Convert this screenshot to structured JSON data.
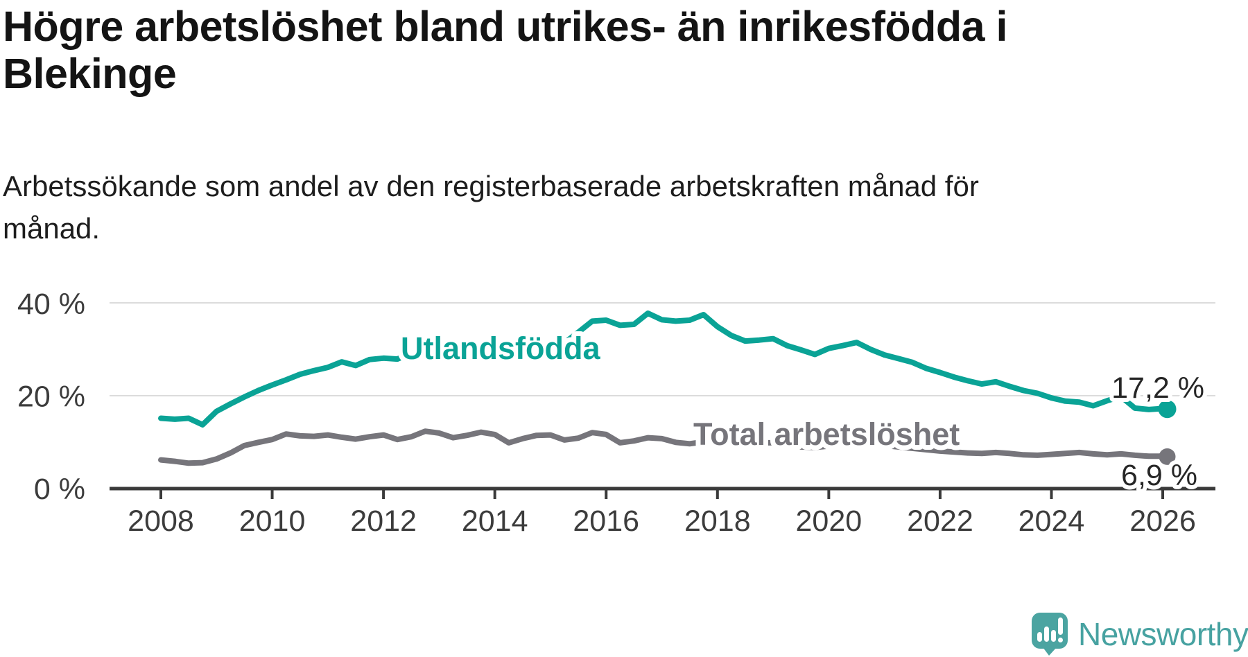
{
  "header": {
    "title_lines": [
      "Högre arbetslöshet bland utrikes- än inrikesfödda i",
      "Blekinge"
    ],
    "subtitle_lines": [
      "Arbetssökande som andel av den registerbaserade arbetskraften månad för",
      "månad."
    ]
  },
  "colors": {
    "accent_teal": "#0aa396",
    "series_gray": "#76757b",
    "gridline": "#dcdcdc",
    "axis": "#3a3a3a",
    "title_text": "#141414",
    "value_label_text": "#262626",
    "logo_teal": "#47a2a1"
  },
  "footer": {
    "logo_text": "Newsworthy"
  },
  "chart_data": {
    "type": "line",
    "title": "Högre arbetslöshet bland utrikes- än inrikesfödda i Blekinge",
    "subtitle": "Arbetssökande som andel av den registerbaserade arbetskraften månad för månad.",
    "x_unit": "year",
    "y_unit": "%",
    "xlim": [
      2007.1,
      2026.95
    ],
    "ylim": [
      0,
      42
    ],
    "grid": "horizontal",
    "x_ticks": [
      {
        "year": 2008,
        "label": "2008"
      },
      {
        "year": 2010,
        "label": "2010"
      },
      {
        "year": 2012,
        "label": "2012"
      },
      {
        "year": 2014,
        "label": "2014"
      },
      {
        "year": 2016,
        "label": "2016"
      },
      {
        "year": 2018,
        "label": "2018"
      },
      {
        "year": 2020,
        "label": "2020"
      },
      {
        "year": 2022,
        "label": "2022"
      },
      {
        "year": 2024,
        "label": "2024"
      },
      {
        "year": 2026,
        "label": "2026"
      }
    ],
    "y_ticks": [
      {
        "value": 40,
        "label": "40 %"
      },
      {
        "value": 20,
        "label": "20 %"
      },
      {
        "value": 0,
        "label": "0 %"
      }
    ],
    "x": [
      2008,
      2008.25,
      2008.5,
      2008.75,
      2009,
      2009.25,
      2009.5,
      2009.75,
      2010,
      2010.25,
      2010.5,
      2010.75,
      2011,
      2011.25,
      2011.5,
      2011.75,
      2012,
      2012.25,
      2012.5,
      2012.75,
      2013,
      2013.25,
      2013.5,
      2013.75,
      2014,
      2014.25,
      2014.5,
      2014.75,
      2015,
      2015.25,
      2015.5,
      2015.75,
      2016,
      2016.25,
      2016.5,
      2016.75,
      2017,
      2017.25,
      2017.5,
      2017.75,
      2018,
      2018.25,
      2018.5,
      2018.75,
      2019,
      2019.25,
      2019.5,
      2019.75,
      2020,
      2020.25,
      2020.5,
      2020.75,
      2021,
      2021.25,
      2021.5,
      2021.75,
      2022,
      2022.25,
      2022.5,
      2022.75,
      2023,
      2023.25,
      2023.5,
      2023.75,
      2024,
      2024.25,
      2024.5,
      2024.75,
      2025,
      2025.25,
      2025.5,
      2025.75,
      2026,
      2026.08
    ],
    "series": [
      {
        "name": "Utlandsfödda",
        "color": "#0aa396",
        "end_label": "17,2 %",
        "end_value": 17.2,
        "values": [
          15.2,
          15.0,
          15.2,
          13.8,
          16.7,
          18.3,
          19.8,
          21.2,
          22.4,
          23.5,
          24.7,
          25.5,
          26.2,
          27.4,
          26.6,
          27.9,
          28.2,
          28.0,
          29.3,
          28.7,
          29.8,
          30.2,
          29.8,
          30.5,
          30.3,
          31.0,
          30.5,
          31.1,
          30.8,
          31.5,
          33.8,
          36.2,
          36.4,
          35.3,
          35.5,
          37.9,
          36.5,
          36.2,
          36.4,
          37.6,
          35.0,
          33.1,
          31.9,
          32.1,
          32.4,
          30.9,
          30.0,
          29.0,
          30.3,
          30.9,
          31.6,
          30.1,
          28.9,
          28.1,
          27.3,
          26.0,
          25.1,
          24.1,
          23.3,
          22.6,
          23.1,
          22.1,
          21.2,
          20.6,
          19.6,
          18.9,
          18.7,
          17.9,
          19.0,
          19.9,
          17.4,
          17.1,
          17.3,
          17.2
        ]
      },
      {
        "name": "Total arbetslöshet",
        "color": "#76757b",
        "end_label": "6,9 %",
        "end_value": 6.9,
        "values": [
          6.2,
          5.9,
          5.5,
          5.6,
          6.4,
          7.7,
          9.3,
          10.0,
          10.6,
          11.8,
          11.4,
          11.3,
          11.6,
          11.1,
          10.7,
          11.2,
          11.6,
          10.6,
          11.2,
          12.4,
          12.0,
          11.0,
          11.5,
          12.2,
          11.7,
          9.9,
          10.8,
          11.5,
          11.6,
          10.5,
          10.9,
          12.1,
          11.7,
          9.9,
          10.3,
          11.0,
          10.8,
          10.0,
          9.7,
          10.1,
          10.2,
          9.8,
          9.6,
          9.9,
          9.9,
          9.4,
          9.0,
          8.9,
          9.2,
          9.9,
          10.2,
          9.7,
          9.3,
          9.0,
          8.7,
          8.4,
          8.1,
          7.9,
          7.7,
          7.6,
          7.8,
          7.6,
          7.3,
          7.2,
          7.4,
          7.6,
          7.8,
          7.5,
          7.3,
          7.5,
          7.2,
          7.0,
          7.0,
          6.9
        ]
      }
    ],
    "legend_position": "inline-labels"
  }
}
